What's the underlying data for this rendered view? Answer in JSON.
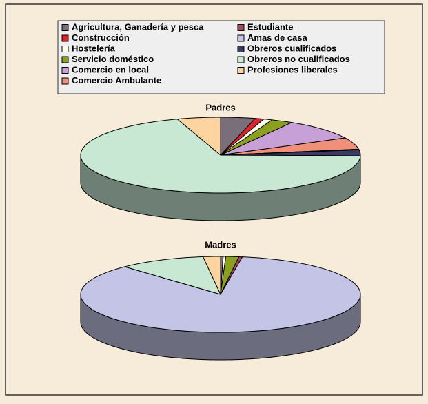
{
  "chart_data": {
    "type": "pie",
    "categories": [
      "Agricultura, Ganadería y pesca",
      "Construcción",
      "Hostelería",
      "Servicio doméstico",
      "Comercio en local",
      "Comercio Ambulante",
      "Estudiante",
      "Amas de casa",
      "Obreros cualificados",
      "Obreros no cualificados",
      "Profesiones liberales"
    ],
    "colors": [
      "#7a6e7a",
      "#e0202a",
      "#fffff2",
      "#8ca020",
      "#c8a0d8",
      "#f0907a",
      "#a04a5a",
      "#c4c4e6",
      "#3a3a64",
      "#c8e8d4",
      "#fcd4a0"
    ],
    "series": [
      {
        "name": "Padres",
        "values": [
          4,
          1,
          1,
          2.5,
          9,
          5,
          0.3,
          0,
          2.5,
          69.7,
          5
        ]
      },
      {
        "name": "Madres",
        "values": [
          0.3,
          0,
          0.3,
          1.5,
          0,
          0,
          0.4,
          85.5,
          0,
          10,
          2
        ]
      }
    ],
    "legend": "top"
  }
}
